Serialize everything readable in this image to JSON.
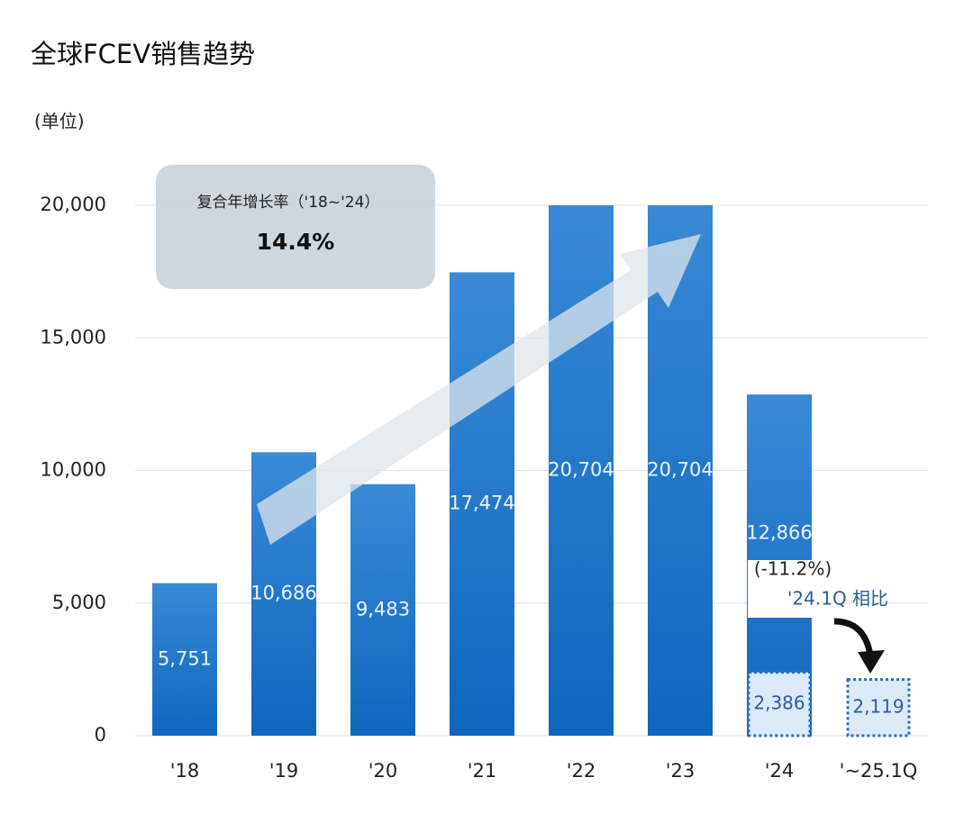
{
  "chart_data": {
    "type": "bar",
    "title": "全球FCEV销售趋势",
    "unit_label": "(单位)",
    "categories": [
      "'18",
      "'19",
      "'20",
      "'21",
      "'22",
      "'23",
      "'24",
      "'~25.1Q"
    ],
    "series": [
      {
        "color": "#1c75cc",
        "values": [
          5751,
          10686,
          9483,
          17474,
          20704,
          20704,
          12866,
          null
        ],
        "value_labels": [
          "5,751",
          "10,686",
          "9,483",
          "17,474",
          "20,704",
          "20,704",
          "12,866",
          null
        ]
      },
      {
        "color": "#dce9f8",
        "values": [
          null,
          null,
          null,
          null,
          null,
          null,
          2386,
          2119
        ],
        "value_labels": [
          null,
          null,
          null,
          null,
          null,
          null,
          "2,386",
          "2,119"
        ]
      }
    ],
    "ylim": [
      0,
      20000
    ],
    "yticks": [
      0,
      {
        "value": 5000,
        "label": "5,000"
      },
      {
        "value": 10000,
        "label": "10,000"
      },
      {
        "value": 15000,
        "label": "15,000"
      },
      {
        "value": 20000,
        "label": "20,000"
      }
    ],
    "grid": true,
    "annotations": {
      "cagr_title": "复合年增长率（'18~'24）",
      "cagr_value": "14.4%",
      "change": "(-11.2%)",
      "compare": "'24.1Q 相比"
    }
  }
}
